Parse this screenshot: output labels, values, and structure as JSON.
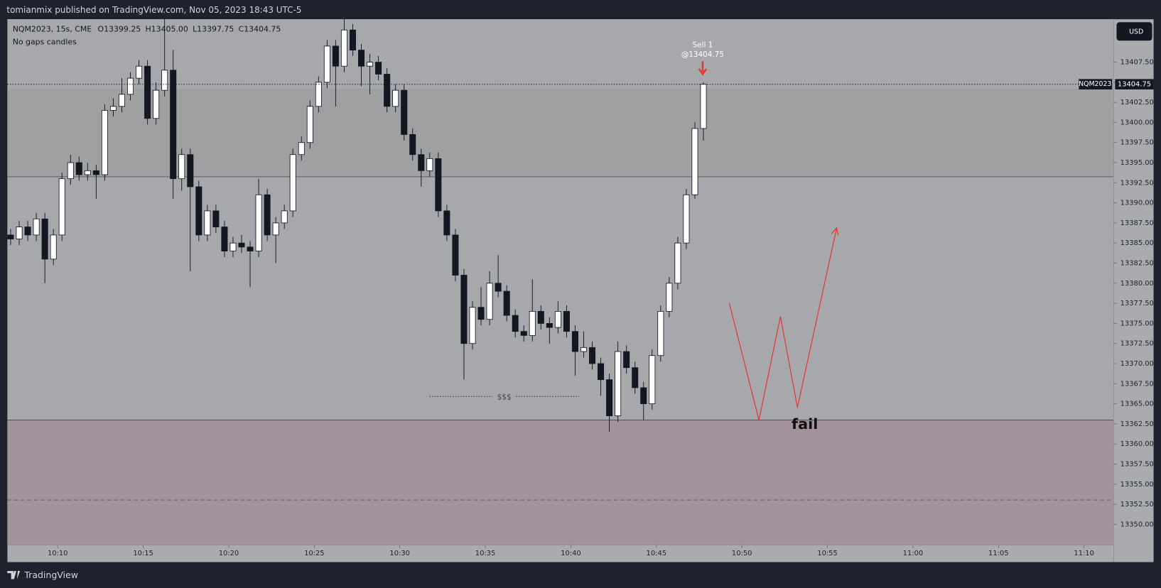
{
  "header": {
    "title": "tomianmix published on TradingView.com, Nov 05, 2023 18:43 UTC-5"
  },
  "footer": {
    "brand": "TradingView"
  },
  "chart_data": {
    "type": "candlestick",
    "legend": {
      "symbol": "NQM2023, 15s, CME",
      "open": "O13399.25",
      "high": "H13405.00",
      "low": "L13397.75",
      "close": "C13404.75",
      "note": "No gaps candles"
    },
    "currency": "USD",
    "symbol_tag": "NQM2023",
    "annotations": {
      "sell": "Sell 1",
      "sell_price": "@13404.75",
      "liquidity": "$$$",
      "fail": "fail"
    },
    "up_color": "#ffffff",
    "down_color": "#131722",
    "grid": false,
    "x": [
      607.25,
      607.75,
      608.25,
      608.75,
      609.25,
      609.75,
      610.25,
      610.75,
      611.25,
      611.75,
      612.25,
      612.75,
      613.25,
      613.75,
      614.25,
      614.75,
      615.25,
      615.75,
      616.25,
      616.75,
      617.25,
      617.75,
      618.25,
      618.75,
      619.25,
      619.75,
      620.25,
      620.75,
      621.25,
      621.75,
      622.25,
      622.75,
      623.25,
      623.75,
      624.25,
      624.75,
      625.25,
      625.75,
      626.25,
      626.75,
      627.25,
      627.75,
      628.25,
      628.75,
      629.25,
      629.75,
      630.25,
      630.75,
      631.25,
      631.75,
      632.25,
      632.75,
      633.25,
      633.75,
      634.25,
      634.75,
      635.25,
      635.75,
      636.25,
      636.75,
      637.25,
      637.75,
      638.25,
      638.75,
      639.25,
      639.75,
      640.25,
      640.75,
      641.25,
      641.75,
      642.25,
      642.75,
      643.25,
      643.75,
      644.25,
      644.75,
      645.25,
      645.75,
      646.25,
      646.75,
      647.25,
      647.75
    ],
    "open": [
      13386,
      13385.5,
      13387,
      13386,
      13388,
      13383,
      13386,
      13393,
      13395,
      13393.5,
      13394,
      13393.5,
      13401.5,
      13402,
      13403.5,
      13405.5,
      13407,
      13400.5,
      13404,
      13406.5,
      13393,
      13396,
      13392,
      13386,
      13389,
      13387,
      13384,
      13385,
      13384.5,
      13384,
      13391,
      13386,
      13387.5,
      13389,
      13396,
      13397.5,
      13402,
      13405,
      13409.5,
      13407,
      13411.5,
      13409,
      13407,
      13407.5,
      13406,
      13402,
      13404,
      13398.5,
      13396,
      13394,
      13395.5,
      13389,
      13386,
      13381,
      13372.5,
      13377,
      13375.5,
      13380,
      13379,
      13376,
      13374,
      13373.5,
      13376.5,
      13375,
      13374.5,
      13376.5,
      13374,
      13371.5,
      13372,
      13370,
      13368,
      13363.5,
      13371.5,
      13369.5,
      13367,
      13365,
      13371,
      13376.5,
      13380,
      13385,
      13391,
      13399.25
    ],
    "high": [
      13386.75,
      13387.75,
      13387.75,
      13388.75,
      13388.75,
      13386.75,
      13393.75,
      13396,
      13395.75,
      13395,
      13394.75,
      13402.25,
      13403,
      13405.5,
      13406.25,
      13407.75,
      13407.75,
      13405,
      13413,
      13409,
      13396.75,
      13396.75,
      13392.75,
      13389.75,
      13389.75,
      13387.75,
      13385.75,
      13386,
      13385.25,
      13393,
      13391.75,
      13388.25,
      13389.75,
      13396.75,
      13398.25,
      13402.75,
      13405.75,
      13410.25,
      13410.25,
      13413,
      13412.25,
      13409.75,
      13408.5,
      13408.25,
      13406.75,
      13404.75,
      13404.75,
      13399.25,
      13396.75,
      13396.25,
      13396.25,
      13389.75,
      13386.75,
      13381.75,
      13377.75,
      13379.5,
      13381.5,
      13383.5,
      13379.75,
      13376.75,
      13374.75,
      13380.5,
      13377.25,
      13375.75,
      13377.75,
      13377.25,
      13374.75,
      13374,
      13372.75,
      13370.75,
      13368.75,
      13372.75,
      13372.25,
      13370.25,
      13367.75,
      13371.75,
      13377.25,
      13380.75,
      13385.75,
      13391.75,
      13400,
      13405
    ],
    "low": [
      13384.75,
      13384.75,
      13385.25,
      13385.25,
      13380,
      13382.25,
      13385.25,
      13392.25,
      13392.75,
      13392.75,
      13390.5,
      13392.75,
      13400.75,
      13401.25,
      13402.75,
      13404.75,
      13399.75,
      13399.75,
      13403.25,
      13390.5,
      13391.5,
      13381.5,
      13385.25,
      13385.25,
      13386.25,
      13383.25,
      13383.25,
      13383.75,
      13379.5,
      13383.25,
      13385.25,
      13382.5,
      13386.75,
      13388.25,
      13395.25,
      13396.75,
      13401.25,
      13404.25,
      13402,
      13406.25,
      13408.25,
      13404.5,
      13403.5,
      13405.25,
      13401.25,
      13401.25,
      13397.75,
      13395.25,
      13392,
      13393.25,
      13388.25,
      13385.25,
      13380.25,
      13368,
      13371.75,
      13374.75,
      13374.75,
      13378.25,
      13375.25,
      13373.25,
      13372.75,
      13372.75,
      13374.25,
      13372.5,
      13373.75,
      13373.25,
      13368.5,
      13370.75,
      13369.25,
      13366,
      13361.5,
      13362.75,
      13368.75,
      13366.25,
      13363,
      13364.25,
      13370.25,
      13375.75,
      13379.25,
      13384.25,
      13390.5,
      13397.75
    ],
    "close": [
      13385.5,
      13387,
      13386,
      13388,
      13383,
      13386,
      13393,
      13395,
      13393.5,
      13394,
      13393.5,
      13401.5,
      13402,
      13403.5,
      13405.5,
      13407,
      13400.5,
      13404,
      13406.5,
      13393,
      13396,
      13392,
      13386,
      13389,
      13387,
      13384,
      13385,
      13384.5,
      13384,
      13391,
      13386,
      13387.5,
      13389,
      13396,
      13397.5,
      13402,
      13405,
      13409.5,
      13407,
      13411.5,
      13409,
      13407,
      13407.5,
      13406,
      13402,
      13404,
      13398.5,
      13396,
      13394,
      13395.5,
      13389,
      13386,
      13381,
      13372.5,
      13377,
      13375.5,
      13380,
      13379,
      13376,
      13374,
      13373.5,
      13376.5,
      13375,
      13374.5,
      13376.5,
      13374,
      13371.5,
      13372,
      13370,
      13368,
      13363.5,
      13371.5,
      13369.5,
      13367,
      13365,
      13371,
      13376.5,
      13380,
      13385,
      13391,
      13399.25,
      13404.75
    ],
    "xlim": [
      607.06,
      671.73
    ],
    "ylim": [
      13347.42,
      13412.84
    ],
    "xticks": [
      {
        "value": 610,
        "label": "10:10"
      },
      {
        "value": 615,
        "label": "10:15"
      },
      {
        "value": 620,
        "label": "10:20"
      },
      {
        "value": 625,
        "label": "10:25"
      },
      {
        "value": 630,
        "label": "10:30"
      },
      {
        "value": 635,
        "label": "10:35"
      },
      {
        "value": 640,
        "label": "10:40"
      },
      {
        "value": 645,
        "label": "10:45"
      },
      {
        "value": 650,
        "label": "10:50"
      },
      {
        "value": 655,
        "label": "10:55"
      },
      {
        "value": 660,
        "label": "11:00"
      },
      {
        "value": 665,
        "label": "11:05"
      },
      {
        "value": 670,
        "label": "11:10"
      }
    ],
    "yticks": [
      {
        "value": 13350,
        "label": "13350.00"
      },
      {
        "value": 13352.5,
        "label": "13352.50"
      },
      {
        "value": 13355,
        "label": "13355.00"
      },
      {
        "value": 13357.5,
        "label": "13357.50"
      },
      {
        "value": 13360,
        "label": "13360.00"
      },
      {
        "value": 13362.5,
        "label": "13362.50"
      },
      {
        "value": 13365,
        "label": "13365.00"
      },
      {
        "value": 13367.5,
        "label": "13367.50"
      },
      {
        "value": 13370,
        "label": "13370.00"
      },
      {
        "value": 13372.5,
        "label": "13372.50"
      },
      {
        "value": 13375,
        "label": "13375.00"
      },
      {
        "value": 13377.5,
        "label": "13377.50"
      },
      {
        "value": 13380,
        "label": "13380.00"
      },
      {
        "value": 13382.5,
        "label": "13382.50"
      },
      {
        "value": 13385,
        "label": "13385.00"
      },
      {
        "value": 13387.5,
        "label": "13387.50"
      },
      {
        "value": 13390,
        "label": "13390.00"
      },
      {
        "value": 13392.5,
        "label": "13392.50"
      },
      {
        "value": 13395,
        "label": "13395.00"
      },
      {
        "value": 13397.5,
        "label": "13397.50"
      },
      {
        "value": 13400,
        "label": "13400.00"
      },
      {
        "value": 13402.5,
        "label": "13402.50"
      },
      {
        "value": 13405,
        "label": "13405.00"
      },
      {
        "value": 13407.5,
        "label": "13407.50"
      }
    ]
  }
}
